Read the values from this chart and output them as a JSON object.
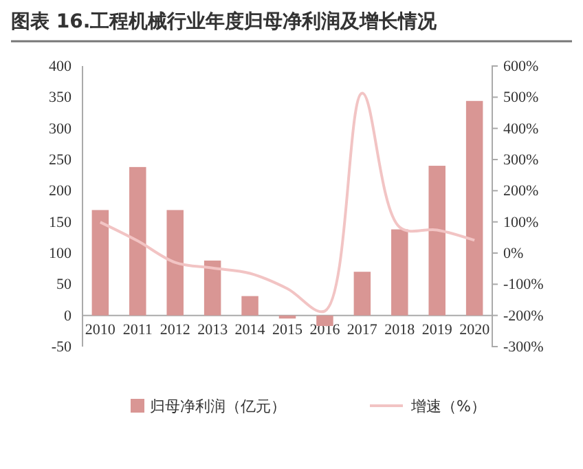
{
  "chart_data": {
    "type": "bar",
    "title": "图表 16.工程机械行业年度归母净利润及增长情况",
    "categories": [
      "2010",
      "2011",
      "2012",
      "2013",
      "2014",
      "2015",
      "2016",
      "2017",
      "2018",
      "2019",
      "2020"
    ],
    "series": [
      {
        "name": "归母净利润（亿元）",
        "color": "#d99694",
        "values": [
          169,
          238,
          169,
          88,
          31,
          -5,
          -17,
          70,
          138,
          240,
          344
        ]
      },
      {
        "name": "增速（%）",
        "type": "line",
        "axis": "y2",
        "color": "#f2c4c4",
        "values": [
          99,
          39,
          -30,
          -48,
          -65,
          -114,
          -186,
          513,
          83,
          74,
          41
        ]
      }
    ],
    "ylim": [
      -50,
      400
    ],
    "yticks": [
      -50,
      0,
      50,
      100,
      150,
      200,
      250,
      300,
      350,
      400
    ],
    "y2lim": [
      -300,
      600
    ],
    "y2ticks": [
      {
        "value": -300,
        "label": "-300%"
      },
      {
        "value": -200,
        "label": "-200%"
      },
      {
        "value": -100,
        "label": "-100%"
      },
      {
        "value": 0,
        "label": "0%"
      },
      {
        "value": 100,
        "label": "100%"
      },
      {
        "value": 200,
        "label": "200%"
      },
      {
        "value": 300,
        "label": "300%"
      },
      {
        "value": 400,
        "label": "400%"
      },
      {
        "value": 500,
        "label": "500%"
      },
      {
        "value": 600,
        "label": "600%"
      }
    ],
    "legend": "bottom",
    "grid": false,
    "marker": "none"
  }
}
